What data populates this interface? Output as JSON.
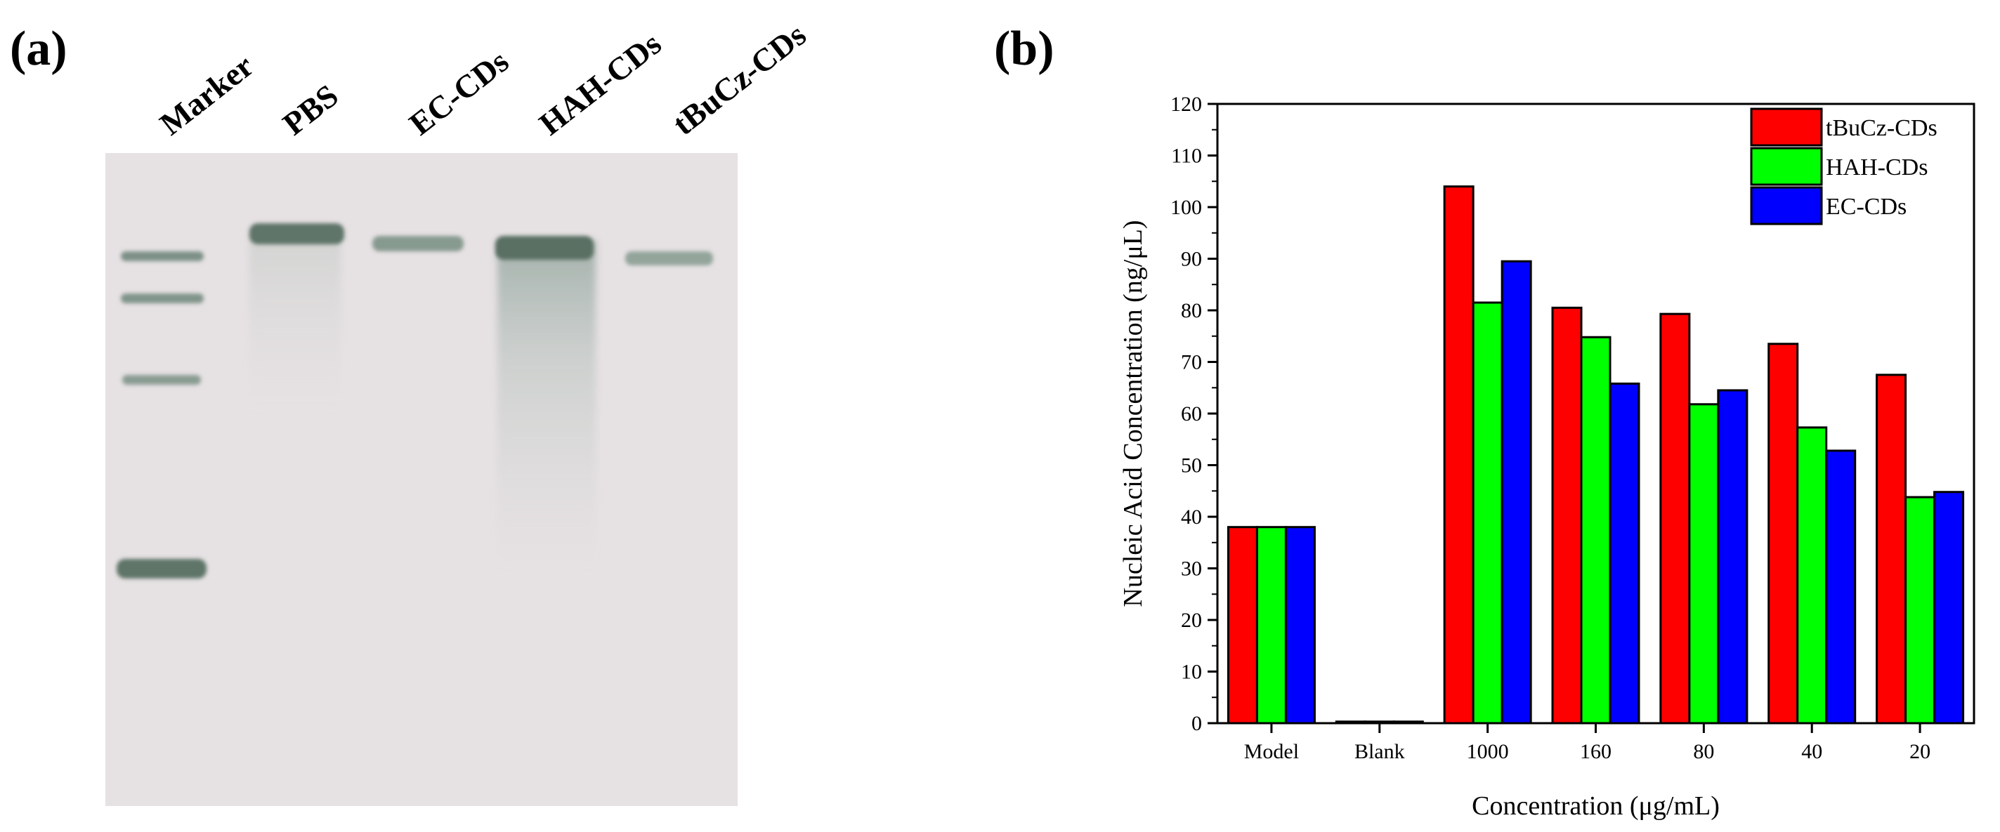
{
  "panels": {
    "a": "(a)",
    "b": "(b)"
  },
  "gel": {
    "lanes": [
      "Marker",
      "PBS",
      "EC-CDs",
      "HAH-CDs",
      "tBuCz-CDs"
    ],
    "background": "#e6e1e3",
    "band_color": "#5e7468"
  },
  "chart_data": {
    "type": "bar",
    "title": "",
    "xlabel": "Concentration (μg/mL)",
    "ylabel": "Nucleic Acid Concentration (ng/μL)",
    "categories": [
      "Model",
      "Blank",
      "1000",
      "160",
      "80",
      "40",
      "20"
    ],
    "ylim": [
      0,
      120
    ],
    "yticks": [
      0,
      10,
      20,
      30,
      40,
      50,
      60,
      70,
      80,
      90,
      100,
      110,
      120
    ],
    "legend_position": "top-right",
    "series": [
      {
        "name": "tBuCz-CDs",
        "color": "#ff0000",
        "values": [
          38,
          0.3,
          104,
          80.5,
          79.3,
          73.5,
          67.5
        ]
      },
      {
        "name": "HAH-CDs",
        "color": "#00ff00",
        "values": [
          38,
          0.3,
          81.5,
          74.8,
          61.8,
          57.3,
          43.8
        ]
      },
      {
        "name": "EC-CDs",
        "color": "#0000ff",
        "values": [
          38,
          0.3,
          89.5,
          65.8,
          64.5,
          52.8,
          44.8
        ]
      }
    ]
  }
}
